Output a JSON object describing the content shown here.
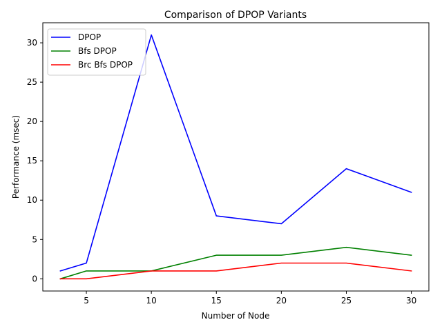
{
  "chart_data": {
    "type": "line",
    "title": "Comparison of DPOP Variants",
    "xlabel": "Number of Node",
    "ylabel": "Performance (msec)",
    "x": [
      3,
      5,
      10,
      15,
      20,
      25,
      30
    ],
    "xlim": [
      1.65,
      31.35
    ],
    "ylim": [
      -1.55,
      32.55
    ],
    "xticks": [
      5,
      10,
      15,
      20,
      25,
      30
    ],
    "yticks": [
      0,
      5,
      10,
      15,
      20,
      25,
      30
    ],
    "grid": false,
    "legend_position": "top-left",
    "series": [
      {
        "name": "DPOP",
        "color": "#0000ff",
        "values": [
          1,
          2,
          31,
          8,
          7,
          14,
          11
        ]
      },
      {
        "name": "Bfs DPOP",
        "color": "#008000",
        "values": [
          0,
          1,
          1,
          3,
          3,
          4,
          3
        ]
      },
      {
        "name": "Brc Bfs DPOP",
        "color": "#ff0000",
        "values": [
          0,
          0,
          1,
          1,
          2,
          2,
          1
        ]
      }
    ]
  }
}
